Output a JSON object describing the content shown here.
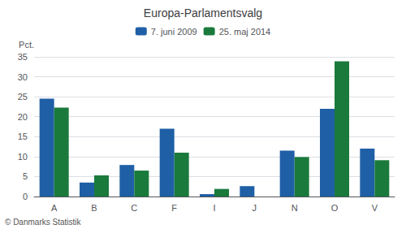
{
  "chart_data": {
    "type": "bar",
    "title": "Europa-Parlamentsvalg",
    "categories": [
      "A",
      "B",
      "C",
      "F",
      "I",
      "J",
      "N",
      "O",
      "V"
    ],
    "series": [
      {
        "name": "7. juni 2009",
        "color": "#1f5fa6",
        "values": [
          24.5,
          3.5,
          7.9,
          17.0,
          0.6,
          2.6,
          11.5,
          22.0,
          12.0
        ]
      },
      {
        "name": "25. maj 2014",
        "color": "#1a7a3c",
        "values": [
          22.3,
          5.3,
          6.5,
          11.0,
          1.9,
          0.0,
          9.9,
          33.9,
          9.1
        ]
      }
    ],
    "ylabel": "Pct.",
    "ylim": [
      0,
      35
    ],
    "yticks": [
      0,
      5,
      10,
      15,
      20,
      25,
      30,
      35
    ],
    "grid": true,
    "legend": "top",
    "annotations": [
      "© Danmarks Statistik"
    ]
  }
}
